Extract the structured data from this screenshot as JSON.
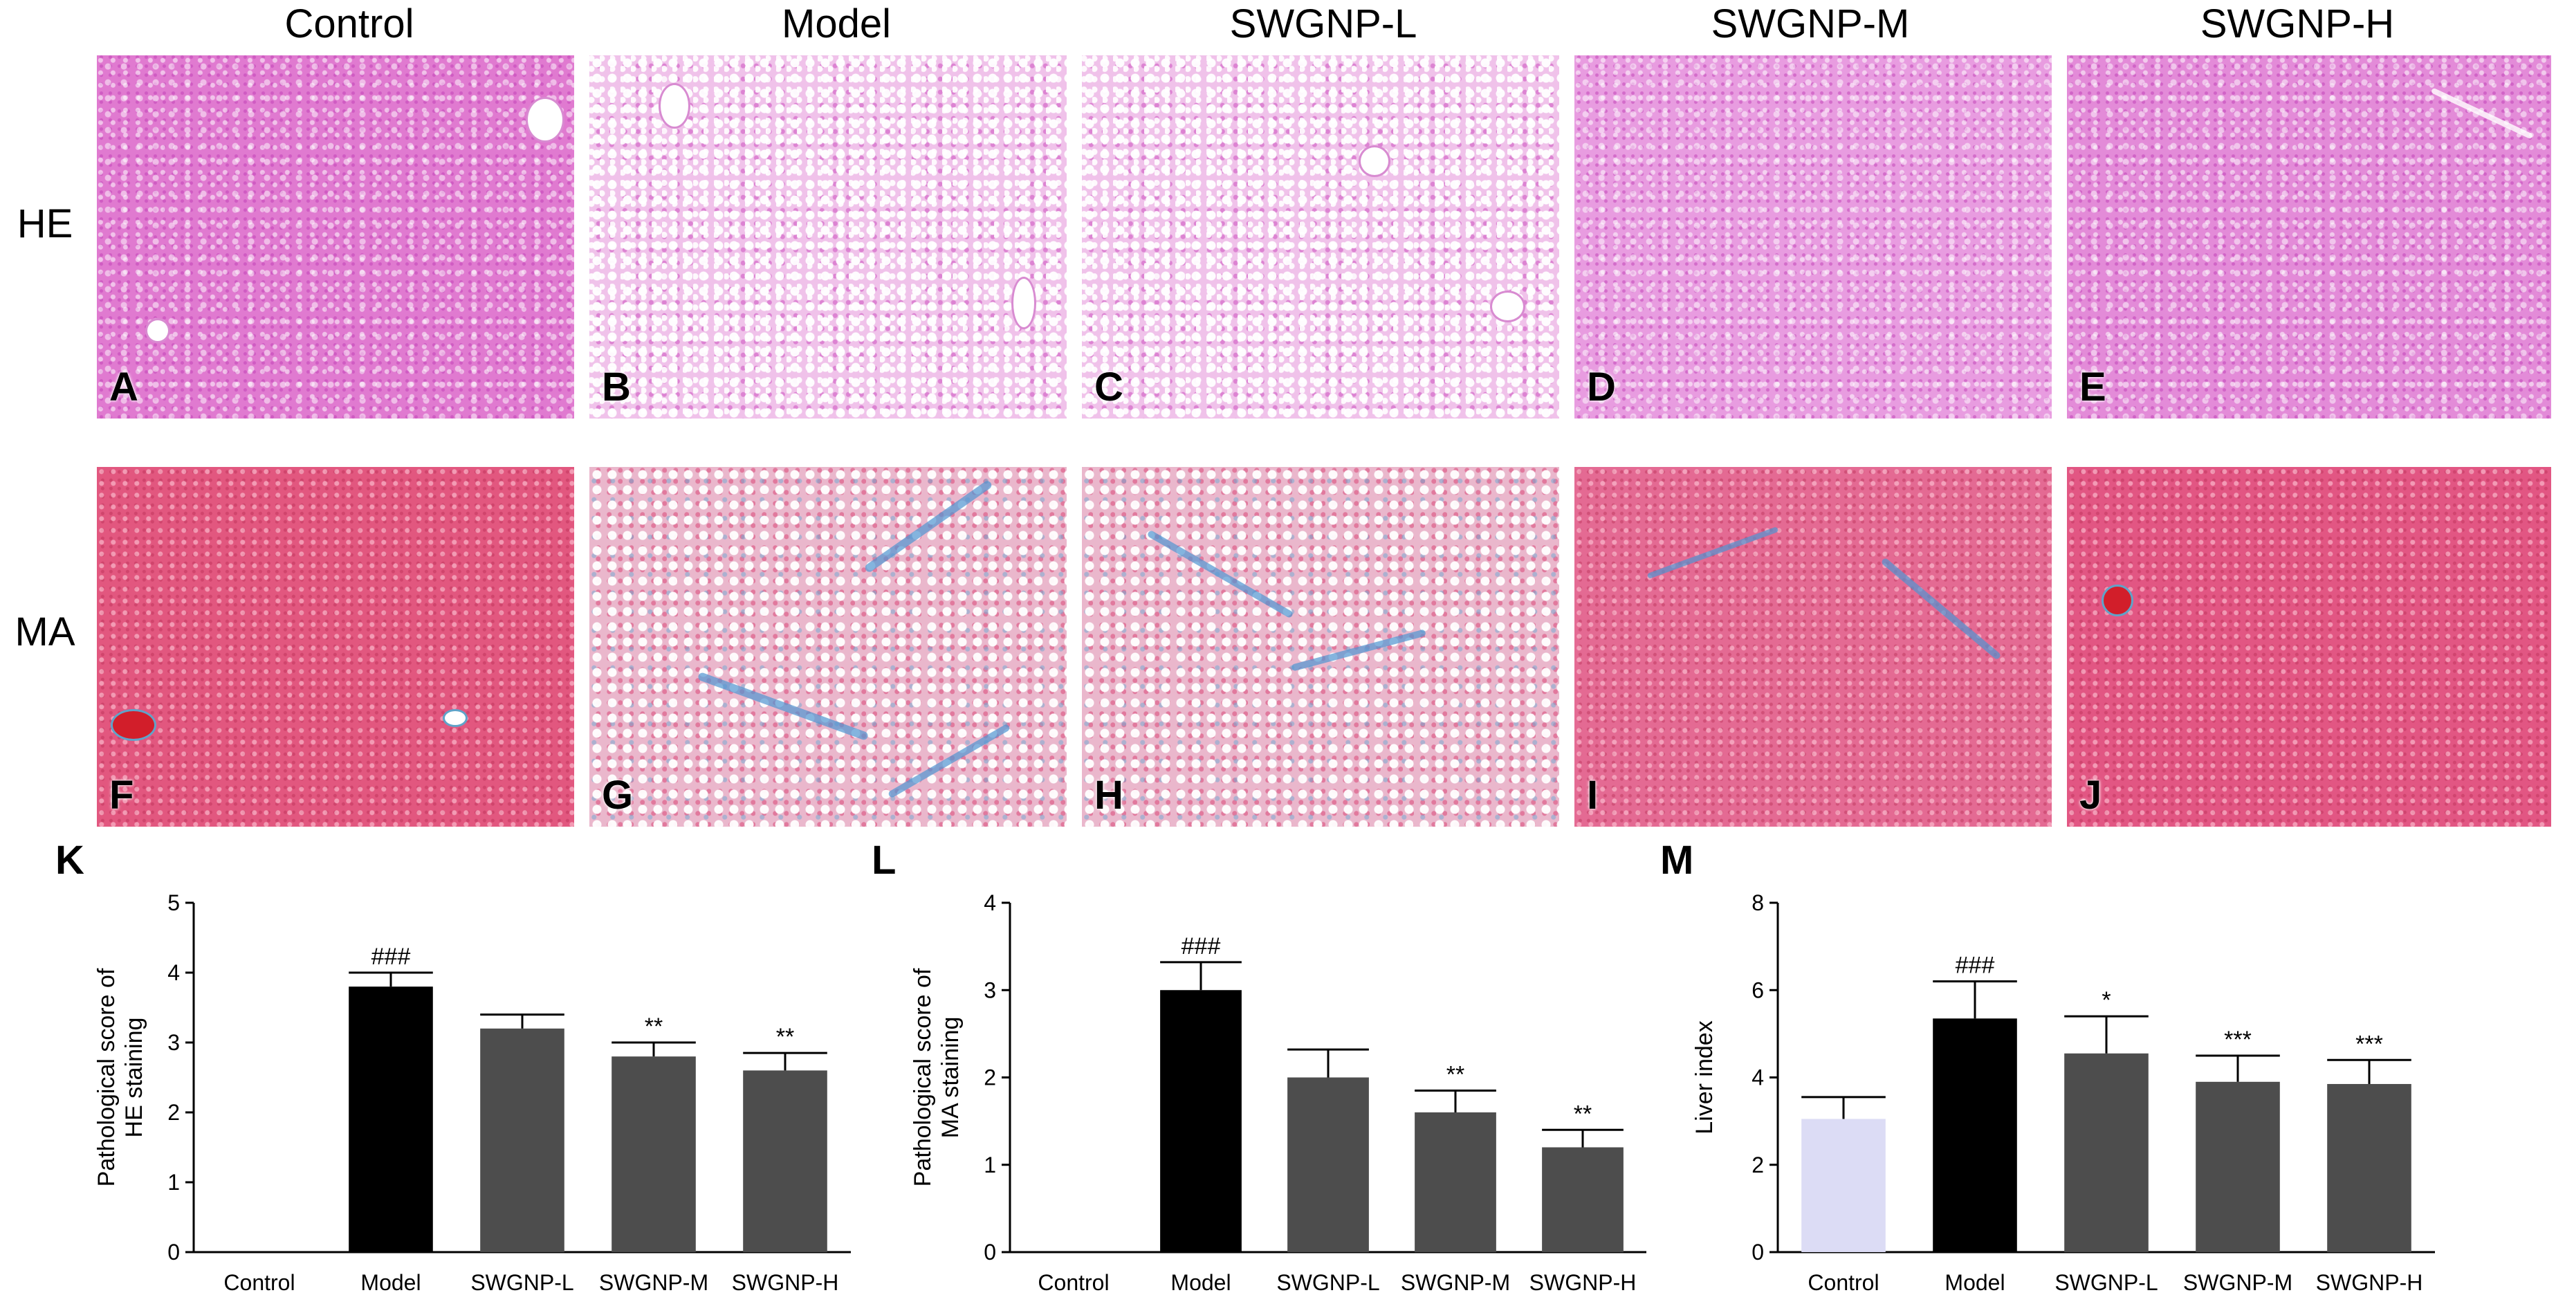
{
  "column_headers": [
    "Control",
    "Model",
    "SWGNP-L",
    "SWGNP-M",
    "SWGNP-H"
  ],
  "row_headers": [
    "HE",
    "MA"
  ],
  "micrograph_letters": {
    "he": [
      "A",
      "B",
      "C",
      "D",
      "E"
    ],
    "ma": [
      "F",
      "G",
      "H",
      "I",
      "J"
    ]
  },
  "colors": {
    "model_bar": "#000000",
    "treatment_bar": "#4d4d4d",
    "control_bar_liver": "#dcdcf5"
  },
  "chart_data": [
    {
      "letter": "K",
      "type": "bar",
      "categories": [
        "Control",
        "Model",
        "SWGNP-L",
        "SWGNP-M",
        "SWGNP-H"
      ],
      "values": [
        0,
        3.8,
        3.2,
        2.8,
        2.6
      ],
      "errors": [
        0,
        0.2,
        0.2,
        0.2,
        0.25
      ],
      "annotations": [
        "",
        "###",
        "",
        "**",
        "**"
      ],
      "ylabel": "Pathological score of\nHE staining",
      "ylim": [
        0,
        5
      ],
      "yticks": [
        0,
        1,
        2,
        3,
        4,
        5
      ]
    },
    {
      "letter": "L",
      "type": "bar",
      "categories": [
        "Control",
        "Model",
        "SWGNP-L",
        "SWGNP-M",
        "SWGNP-H"
      ],
      "values": [
        0,
        3.0,
        2.0,
        1.6,
        1.2
      ],
      "errors": [
        0,
        0.32,
        0.32,
        0.25,
        0.2
      ],
      "annotations": [
        "",
        "###",
        "",
        "**",
        "**"
      ],
      "ylabel": "Pathological score of\nMA staining",
      "ylim": [
        0,
        4
      ],
      "yticks": [
        0,
        1,
        2,
        3,
        4
      ]
    },
    {
      "letter": "M",
      "type": "bar",
      "categories": [
        "Control",
        "Model",
        "SWGNP-L",
        "SWGNP-M",
        "SWGNP-H"
      ],
      "values": [
        3.05,
        5.35,
        4.55,
        3.9,
        3.85
      ],
      "errors": [
        0.5,
        0.85,
        0.85,
        0.6,
        0.55
      ],
      "annotations": [
        "",
        "###",
        "*",
        "***",
        "***"
      ],
      "ylabel": "Liver index",
      "ylim": [
        0,
        8
      ],
      "yticks": [
        0,
        2,
        4,
        6,
        8
      ]
    }
  ]
}
